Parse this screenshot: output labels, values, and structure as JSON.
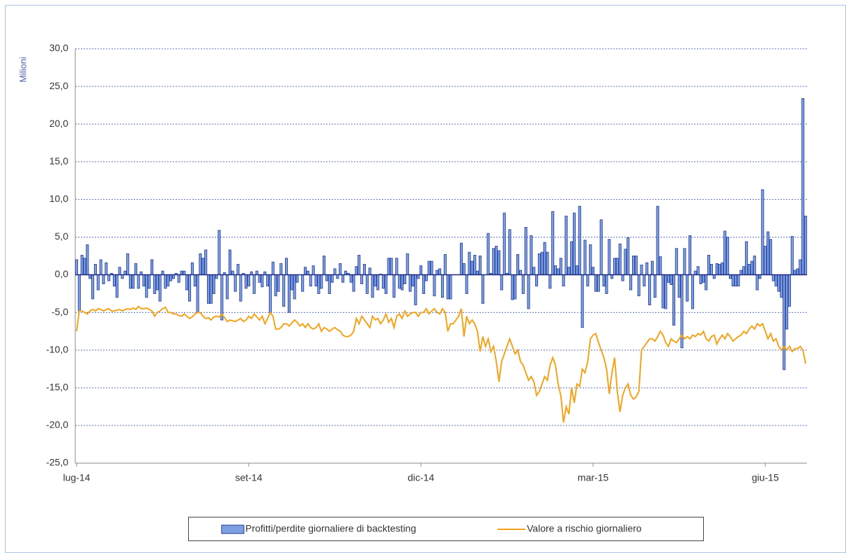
{
  "chart_data": {
    "type": "bar",
    "y_label": "Milioni",
    "ylim": [
      -25,
      30
    ],
    "yticks": [
      {
        "value": -25,
        "label": "-25,0"
      },
      {
        "value": -20,
        "label": "-20,0"
      },
      {
        "value": -15,
        "label": "-15,0"
      },
      {
        "value": -10,
        "label": "-10,0"
      },
      {
        "value": -5,
        "label": "-5,0"
      },
      {
        "value": 0,
        "label": "0,0"
      },
      {
        "value": 5,
        "label": "5,0"
      },
      {
        "value": 10,
        "label": "10,0"
      },
      {
        "value": 15,
        "label": "15,0"
      },
      {
        "value": 20,
        "label": "20,0"
      },
      {
        "value": 25,
        "label": "25,0"
      },
      {
        "value": 30,
        "label": "30,0"
      }
    ],
    "grid": true,
    "legend": "bottom",
    "categories": [
      "lug-14",
      null,
      null,
      null,
      null,
      null,
      null,
      null,
      null,
      null,
      null,
      null,
      null,
      null,
      null,
      null,
      null,
      null,
      null,
      null,
      null,
      null,
      null,
      null,
      null,
      null,
      null,
      null,
      null,
      null,
      null,
      null,
      null,
      null,
      null,
      null,
      null,
      null,
      null,
      null,
      null,
      null,
      null,
      null,
      null,
      null,
      null,
      null,
      null,
      null,
      null,
      null,
      null,
      null,
      null,
      null,
      null,
      null,
      null,
      null,
      null,
      null,
      null,
      null,
      "set-14",
      null,
      null,
      null,
      null,
      null,
      null,
      null,
      null,
      null,
      null,
      null,
      null,
      null,
      null,
      null,
      null,
      null,
      null,
      null,
      null,
      null,
      null,
      null,
      null,
      null,
      null,
      null,
      null,
      null,
      null,
      null,
      null,
      null,
      null,
      null,
      null,
      null,
      null,
      null,
      null,
      null,
      null,
      null,
      null,
      null,
      null,
      null,
      null,
      null,
      null,
      null,
      null,
      null,
      null,
      null,
      null,
      null,
      null,
      null,
      null,
      null,
      null,
      null,
      "dic-14",
      null,
      null,
      null,
      null,
      null,
      null,
      null,
      null,
      null,
      null,
      null,
      null,
      null,
      null,
      null,
      null,
      null,
      null,
      null,
      null,
      null,
      null,
      null,
      null,
      null,
      null,
      null,
      null,
      null,
      null,
      null,
      null,
      null,
      null,
      null,
      null,
      null,
      null,
      null,
      null,
      null,
      null,
      null,
      null,
      null,
      null,
      null,
      null,
      null,
      null,
      null,
      null,
      null,
      null,
      null,
      null,
      null,
      null,
      null,
      null,
      null,
      null,
      null,
      "mar-15",
      null,
      null,
      null,
      null,
      null,
      null,
      null,
      null,
      null,
      null,
      null,
      null,
      null,
      null,
      null,
      null,
      null,
      null,
      null,
      null,
      null,
      null,
      null,
      null,
      null,
      null,
      null,
      null,
      null,
      null,
      null,
      null,
      null,
      null,
      null,
      null,
      null,
      null,
      null,
      null,
      null,
      null,
      null,
      null,
      null,
      null,
      null,
      null,
      null,
      null,
      null,
      null,
      null,
      null,
      null,
      null,
      null,
      null,
      null,
      null,
      null,
      null,
      null,
      "giu-15",
      null,
      null,
      null,
      null,
      null,
      null,
      null,
      null,
      null,
      null,
      null,
      null,
      null,
      null,
      null
    ],
    "series": [
      {
        "name": "Profitti/perdite giornaliere di backtesting",
        "type": "bar",
        "color": "#7f9fe3",
        "stroke": "#1f3a96",
        "values": [
          2.0,
          -4.8,
          2.6,
          2.2,
          4.0,
          -0.5,
          -3.2,
          1.4,
          -2.0,
          2.0,
          -1.2,
          1.6,
          -0.8,
          0.2,
          -1.5,
          -3.0,
          1.0,
          -0.5,
          0.5,
          2.8,
          -1.8,
          -1.8,
          1.5,
          -1.8,
          0.4,
          -1.5,
          -3.0,
          -1.8,
          2.0,
          -2.5,
          -2.0,
          -3.5,
          0.5,
          -1.8,
          -1.5,
          -0.8,
          -0.5,
          0.2,
          -1.0,
          0.5,
          0.5,
          -2.0,
          -3.5,
          1.6,
          -1.5,
          -5.0,
          2.8,
          2.2,
          3.3,
          -3.8,
          -3.8,
          -2.5,
          -0.5,
          5.9,
          -6.0,
          0.3,
          -3.2,
          3.3,
          0.5,
          -2.2,
          1.4,
          -3.5,
          0.2,
          -1.8,
          -1.5,
          0.4,
          -2.5,
          0.5,
          -1.0,
          -1.6,
          0.4,
          -1.5,
          -5.0,
          1.7,
          -2.8,
          -2.2,
          1.5,
          -4.2,
          2.2,
          -5.0,
          -2.0,
          -3.2,
          -1.0,
          0.0,
          -2.2,
          1.0,
          0.5,
          -1.5,
          1.2,
          -1.5,
          -2.5,
          -1.8,
          2.5,
          -0.8,
          -2.5,
          -1.0,
          0.8,
          -0.5,
          1.5,
          -1.0,
          0.5,
          0.2,
          -1.0,
          -2.2,
          1.1,
          2.6,
          -1.2,
          1.4,
          -2.5,
          0.9,
          -3.0,
          -1.5,
          -2.0,
          0.1,
          -1.8,
          -2.5,
          2.2,
          2.2,
          -3.0,
          2.2,
          -1.8,
          -2.0,
          -1.2,
          2.8,
          -2.2,
          -1.5,
          -4.0,
          -0.5,
          1.2,
          -2.5,
          -0.8,
          1.8,
          1.8,
          -2.8,
          0.6,
          0.8,
          -3.0,
          2.7,
          -3.2,
          -3.2,
          0.0,
          0.0,
          0.0,
          4.2,
          1.5,
          -2.5,
          3.0,
          1.8,
          2.6,
          0.5,
          2.5,
          -3.8,
          0.0,
          5.5,
          0.2,
          3.5,
          3.8,
          3.2,
          -2.0,
          8.2,
          0.2,
          6.0,
          -3.3,
          -3.2,
          2.7,
          0.6,
          -2.5,
          6.3,
          -4.5,
          5.2,
          1.0,
          -1.5,
          2.8,
          3.0,
          4.3,
          3.0,
          -1.8,
          8.4,
          1.2,
          0.8,
          2.2,
          -1.5,
          7.8,
          1.0,
          4.4,
          8.2,
          1.2,
          9.1,
          -7.0,
          4.6,
          -1.5,
          4.0,
          1.0,
          -2.2,
          -2.2,
          7.3,
          -1.5,
          -2.5,
          4.7,
          -0.5,
          2.2,
          2.2,
          4.1,
          -0.8,
          3.4,
          4.9,
          -2.0,
          2.5,
          2.5,
          -2.8,
          1.3,
          -1.5,
          1.6,
          -4.0,
          1.8,
          -3.0,
          9.1,
          2.4,
          -4.4,
          -4.5,
          -1.0,
          -1.3,
          -6.7,
          3.5,
          -3.0,
          -9.7,
          3.5,
          -3.5,
          5.2,
          -4.5,
          0.5,
          1.1,
          -1.2,
          -1.0,
          -2.0,
          2.6,
          1.4,
          -0.5,
          1.5,
          1.4,
          1.6,
          5.8,
          5.0,
          -0.5,
          -1.5,
          -1.5,
          -1.5,
          0.6,
          1.1,
          4.4,
          1.4,
          1.8,
          2.5,
          -2.0,
          -0.5,
          11.3,
          3.8,
          5.7,
          4.7,
          -0.8,
          -1.5,
          -2.2,
          -3.0,
          -12.6,
          -7.2,
          -4.2,
          5.1,
          0.6,
          0.8,
          2.0,
          23.4,
          7.8
        ]
      },
      {
        "name": "Valore a rischio giornaliero",
        "type": "line",
        "color": "#f5a31a",
        "values": [
          -7.5,
          -4.8,
          -4.8,
          -5.0,
          -5.2,
          -4.8,
          -4.6,
          -4.8,
          -4.5,
          -4.6,
          -4.8,
          -4.6,
          -4.5,
          -4.8,
          -4.8,
          -4.7,
          -4.6,
          -4.8,
          -4.6,
          -4.5,
          -4.6,
          -4.4,
          -4.6,
          -4.2,
          -4.5,
          -4.5,
          -4.4,
          -4.6,
          -4.8,
          -5.5,
          -5.0,
          -4.8,
          -4.5,
          -4.3,
          -5.0,
          -5.0,
          -5.2,
          -5.2,
          -5.4,
          -5.5,
          -5.2,
          -5.5,
          -5.8,
          -5.6,
          -5.2,
          -5.0,
          -5.0,
          -5.5,
          -5.8,
          -5.7,
          -6.0,
          -5.6,
          -5.5,
          -5.6,
          -5.2,
          -5.7,
          -6.2,
          -6.0,
          -6.1,
          -6.2,
          -6.0,
          -5.8,
          -6.2,
          -6.0,
          -5.5,
          -5.8,
          -5.2,
          -5.6,
          -6.0,
          -5.5,
          -6.5,
          -5.8,
          -5.0,
          -5.5,
          -7.2,
          -7.2,
          -7.0,
          -6.5,
          -6.5,
          -6.8,
          -6.4,
          -6.0,
          -6.3,
          -6.8,
          -6.5,
          -7.0,
          -6.5,
          -7.0,
          -7.2,
          -7.0,
          -6.5,
          -7.5,
          -7.0,
          -7.2,
          -7.5,
          -7.2,
          -7.0,
          -7.3,
          -7.5,
          -8.0,
          -8.2,
          -8.2,
          -8.0,
          -7.5,
          -5.8,
          -6.5,
          -5.5,
          -6.0,
          -6.5,
          -7.0,
          -5.5,
          -6.0,
          -5.8,
          -6.5,
          -6.0,
          -5.2,
          -6.3,
          -5.8,
          -7.0,
          -5.5,
          -5.2,
          -5.8,
          -4.8,
          -5.5,
          -5.2,
          -5.0,
          -5.0,
          -5.5,
          -5.0,
          -5.0,
          -4.5,
          -5.2,
          -4.8,
          -4.5,
          -5.0,
          -5.2,
          -4.5,
          -5.0,
          -7.5,
          -6.5,
          -6.5,
          -6.0,
          -5.5,
          -4.5,
          -8.2,
          -5.5,
          -6.5,
          -6.0,
          -6.5,
          -7.5,
          -10.2,
          -8.2,
          -9.5,
          -8.5,
          -10.2,
          -9.5,
          -11.5,
          -14.2,
          -11.5,
          -10.5,
          -9.5,
          -8.5,
          -9.5,
          -10.5,
          -10.0,
          -11.5,
          -12.0,
          -13.0,
          -14.0,
          -13.5,
          -14.2,
          -16.0,
          -15.5,
          -14.5,
          -13.5,
          -14.0,
          -12.0,
          -11.0,
          -12.0,
          -14.5,
          -16.0,
          -19.6,
          -17.5,
          -18.5,
          -15.0,
          -17.0,
          -14.5,
          -14.8,
          -12.5,
          -13.0,
          -11.5,
          -8.5,
          -8.0,
          -7.8,
          -9.0,
          -10.0,
          -11.0,
          -12.5,
          -15.8,
          -13.0,
          -11.0,
          -15.5,
          -18.2,
          -16.0,
          -15.0,
          -14.5,
          -16.0,
          -16.5,
          -16.2,
          -15.5,
          -10.0,
          -9.5,
          -9.0,
          -8.5,
          -8.5,
          -8.8,
          -8.2,
          -7.5,
          -8.0,
          -9.0,
          -9.5,
          -8.5,
          -8.8,
          -9.0,
          -8.5,
          -8.0,
          -8.5,
          -8.2,
          -8.5,
          -8.0,
          -8.2,
          -7.8,
          -8.0,
          -7.5,
          -8.5,
          -8.8,
          -8.2,
          -8.0,
          -9.2,
          -8.5,
          -8.0,
          -8.5,
          -7.8,
          -8.2,
          -8.8,
          -8.5,
          -8.2,
          -8.0,
          -7.5,
          -7.8,
          -7.2,
          -6.8,
          -7.2,
          -6.5,
          -6.8,
          -6.5,
          -7.5,
          -8.5,
          -7.8,
          -8.8,
          -8.5,
          -9.5,
          -10.0,
          -9.5,
          -10.0,
          -9.5,
          -10.2,
          -9.8,
          -9.8,
          -9.5,
          -10.0,
          -11.8
        ]
      }
    ]
  }
}
